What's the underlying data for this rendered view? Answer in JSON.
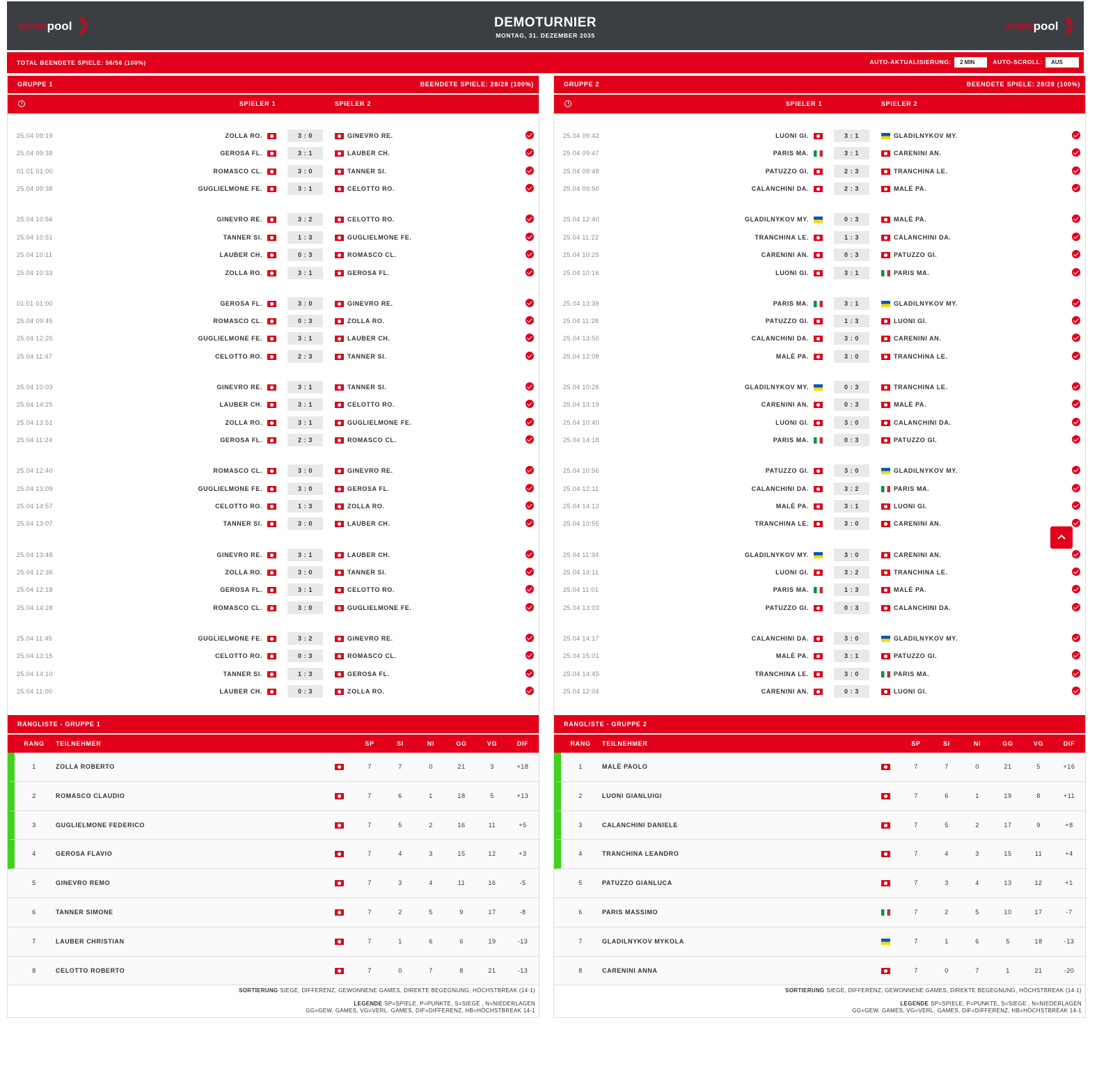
{
  "header": {
    "logo": {
      "part1": "swiss",
      "part2": "pool"
    },
    "title": "DEMOTURNIER",
    "subtitle": "MONTAG, 31. DEZEMBER 2035"
  },
  "status": {
    "total": "TOTAL BEENDETE SPIELE: 56/56 (100%)",
    "refresh_label": "AUTO-AKTUALISIERUNG:",
    "refresh_value": "2 MIN",
    "scroll_label": "AUTO-SCROLL:",
    "scroll_value": "AUS"
  },
  "groups": [
    {
      "name": "GRUPPE 1",
      "finished": "BEENDETE SPIELE: 28/28 (100%)",
      "col_p1": "SPIELER 1",
      "col_p2": "SPIELER 2",
      "rounds": [
        [
          [
            "25.04 09:19",
            "ZOLLA RO.",
            "ch",
            "3 : 0",
            "ch",
            "GINEVRO RE."
          ],
          [
            "25.04 09:38",
            "GEROSA FL.",
            "ch",
            "3 : 1",
            "ch",
            "LAUBER CH."
          ],
          [
            "01.01 01:00",
            "ROMASCO CL.",
            "ch",
            "3 : 0",
            "ch",
            "TANNER SI."
          ],
          [
            "25.04 09:38",
            "GUGLIELMONE FE.",
            "ch",
            "3 : 1",
            "ch",
            "CELOTTO RO."
          ]
        ],
        [
          [
            "25.04 10:56",
            "GINEVRO RE.",
            "ch",
            "3 : 2",
            "ch",
            "CELOTTO RO."
          ],
          [
            "25.04 10:51",
            "TANNER SI.",
            "ch",
            "1 : 3",
            "ch",
            "GUGLIELMONE FE."
          ],
          [
            "25.04 10:11",
            "LAUBER CH.",
            "ch",
            "0 : 3",
            "ch",
            "ROMASCO CL."
          ],
          [
            "25.04 10:33",
            "ZOLLA RO.",
            "ch",
            "3 : 1",
            "ch",
            "GEROSA FL."
          ]
        ],
        [
          [
            "01.01 01:00",
            "GEROSA FL.",
            "ch",
            "3 : 0",
            "ch",
            "GINEVRO RE."
          ],
          [
            "25.04 09:45",
            "ROMASCO CL.",
            "ch",
            "0 : 3",
            "ch",
            "ZOLLA RO."
          ],
          [
            "25.04 12:20",
            "GUGLIELMONE FE.",
            "ch",
            "3 : 1",
            "ch",
            "LAUBER CH."
          ],
          [
            "25.04 11:47",
            "CELOTTO RO.",
            "ch",
            "2 : 3",
            "ch",
            "TANNER SI."
          ]
        ],
        [
          [
            "25.04 10:03",
            "GINEVRO RE.",
            "ch",
            "3 : 1",
            "ch",
            "TANNER SI."
          ],
          [
            "25.04 14:25",
            "LAUBER CH.",
            "ch",
            "3 : 1",
            "ch",
            "CELOTTO RO."
          ],
          [
            "25.04 13:51",
            "ZOLLA RO.",
            "ch",
            "3 : 1",
            "ch",
            "GUGLIELMONE FE."
          ],
          [
            "25.04 11:24",
            "GEROSA FL.",
            "ch",
            "2 : 3",
            "ch",
            "ROMASCO CL."
          ]
        ],
        [
          [
            "25.04 12:40",
            "ROMASCO CL.",
            "ch",
            "3 : 0",
            "ch",
            "GINEVRO RE."
          ],
          [
            "25.04 13:09",
            "GUGLIELMONE FE.",
            "ch",
            "3 : 0",
            "ch",
            "GEROSA FL."
          ],
          [
            "25.04 14:57",
            "CELOTTO RO.",
            "ch",
            "1 : 3",
            "ch",
            "ZOLLA RO."
          ],
          [
            "25.04 13:07",
            "TANNER SI.",
            "ch",
            "3 : 0",
            "ch",
            "LAUBER CH."
          ]
        ],
        [
          [
            "25.04 13:48",
            "GINEVRO RE.",
            "ch",
            "3 : 1",
            "ch",
            "LAUBER CH."
          ],
          [
            "25.04 12:36",
            "ZOLLA RO.",
            "ch",
            "3 : 0",
            "ch",
            "TANNER SI."
          ],
          [
            "25.04 12:18",
            "GEROSA FL.",
            "ch",
            "3 : 1",
            "ch",
            "CELOTTO RO."
          ],
          [
            "25.04 14:28",
            "ROMASCO CL.",
            "ch",
            "3 : 0",
            "ch",
            "GUGLIELMONE FE."
          ]
        ],
        [
          [
            "25.04 11:45",
            "GUGLIELMONE FE.",
            "ch",
            "3 : 2",
            "ch",
            "GINEVRO RE."
          ],
          [
            "25.04 13:15",
            "CELOTTO RO.",
            "ch",
            "0 : 3",
            "ch",
            "ROMASCO CL."
          ],
          [
            "25.04 14:10",
            "TANNER SI.",
            "ch",
            "1 : 3",
            "ch",
            "GEROSA FL."
          ],
          [
            "25.04 11:00",
            "LAUBER CH.",
            "ch",
            "0 : 3",
            "ch",
            "ZOLLA RO."
          ]
        ]
      ],
      "standings": {
        "title": "RANGLISTE - GRUPPE 1",
        "columns": [
          "RANG",
          "TEILNEHMER",
          "SP",
          "SI",
          "NI",
          "GG",
          "VG",
          "DIF"
        ],
        "rows": [
          [
            1,
            "ZOLLA ROBERTO",
            "ch",
            7,
            7,
            0,
            21,
            3,
            "+18"
          ],
          [
            2,
            "ROMASCO CLAUDIO",
            "ch",
            7,
            6,
            1,
            18,
            5,
            "+13"
          ],
          [
            3,
            "GUGLIELMONE FEDERICO",
            "ch",
            7,
            5,
            2,
            16,
            11,
            "+5"
          ],
          [
            4,
            "GEROSA FLAVIO",
            "ch",
            7,
            4,
            3,
            15,
            12,
            "+3"
          ],
          [
            5,
            "GINEVRO REMO",
            "ch",
            7,
            3,
            4,
            11,
            16,
            "-5"
          ],
          [
            6,
            "TANNER SIMONE",
            "ch",
            7,
            2,
            5,
            9,
            17,
            "-8"
          ],
          [
            7,
            "LAUBER CHRISTIAN",
            "ch",
            7,
            1,
            6,
            6,
            19,
            "-13"
          ],
          [
            8,
            "CELOTTO ROBERTO",
            "ch",
            7,
            0,
            7,
            8,
            21,
            "-13"
          ]
        ]
      },
      "sort_label": "SORTIERUNG",
      "sort_text": "SIEGE, DIFFERENZ, GEWONNENE GAMES, DIREKTE BEGEGNUNG, HÖCHSTBREAK (14-1)",
      "legend_label": "LEGENDE",
      "legend_lines": [
        "SP=SPIELE, P=PUNKTE, S=SIEGE , N=NIEDERLAGEN",
        "GG=GEW. GAMES, VG=VERL. GAMES, DIF=DIFFERENZ, HB=HÖCHSTBREAK 14-1"
      ]
    },
    {
      "name": "GRUPPE 2",
      "finished": "BEENDETE SPIELE: 28/28 (100%)",
      "col_p1": "SPIELER 1",
      "col_p2": "SPIELER 2",
      "rounds": [
        [
          [
            "25.04 09:42",
            "LUONI GI.",
            "ch",
            "3 : 1",
            "ua",
            "GLADILNYKOV MY."
          ],
          [
            "25.04 09:47",
            "PARIS MA.",
            "it",
            "3 : 1",
            "ch",
            "CARENINI AN."
          ],
          [
            "25.04 09:48",
            "PATUZZO GI.",
            "ch",
            "2 : 3",
            "ch",
            "TRANCHINA LE."
          ],
          [
            "25.04 09:50",
            "CALANCHINI DA.",
            "ch",
            "2 : 3",
            "ch",
            "MALÈ PA."
          ]
        ],
        [
          [
            "25.04 12:40",
            "GLADILNYKOV MY.",
            "ua",
            "0 : 3",
            "ch",
            "MALÈ PA."
          ],
          [
            "25.04 11:22",
            "TRANCHINA LE.",
            "ch",
            "1 : 3",
            "ch",
            "CALANCHINI DA."
          ],
          [
            "25.04 10:25",
            "CARENINI AN.",
            "ch",
            "0 : 3",
            "ch",
            "PATUZZO GI."
          ],
          [
            "25.04 10:16",
            "LUONI GI.",
            "ch",
            "3 : 1",
            "it",
            "PARIS MA."
          ]
        ],
        [
          [
            "25.04 13:39",
            "PARIS MA.",
            "it",
            "3 : 1",
            "ua",
            "GLADILNYKOV MY."
          ],
          [
            "25.04 11:28",
            "PATUZZO GI.",
            "ch",
            "1 : 3",
            "ch",
            "LUONI GI."
          ],
          [
            "25.04 13:50",
            "CALANCHINI DA.",
            "ch",
            "3 : 0",
            "ch",
            "CARENINI AN."
          ],
          [
            "25.04 12:08",
            "MALÈ PA.",
            "ch",
            "3 : 0",
            "ch",
            "TRANCHINA LE."
          ]
        ],
        [
          [
            "25.04 10:26",
            "GLADILNYKOV MY.",
            "ua",
            "0 : 3",
            "ch",
            "TRANCHINA LE."
          ],
          [
            "25.04 13:19",
            "CARENINI AN.",
            "ch",
            "0 : 3",
            "ch",
            "MALÈ PA."
          ],
          [
            "25.04 10:40",
            "LUONI GI.",
            "ch",
            "3 : 0",
            "ch",
            "CALANCHINI DA."
          ],
          [
            "25.04 14:18",
            "PARIS MA.",
            "it",
            "0 : 3",
            "ch",
            "PATUZZO GI."
          ]
        ],
        [
          [
            "25.04 10:56",
            "PATUZZO GI.",
            "ch",
            "3 : 0",
            "ua",
            "GLADILNYKOV MY."
          ],
          [
            "25.04 12:11",
            "CALANCHINI DA.",
            "ch",
            "3 : 2",
            "it",
            "PARIS MA."
          ],
          [
            "25.04 14:12",
            "MALÈ PA.",
            "ch",
            "3 : 1",
            "ch",
            "LUONI GI."
          ],
          [
            "25.04 10:55",
            "TRANCHINA LE.",
            "ch",
            "3 : 0",
            "ch",
            "CARENINI AN."
          ]
        ],
        [
          [
            "25.04 11:34",
            "GLADILNYKOV MY.",
            "ua",
            "3 : 0",
            "ch",
            "CARENINI AN."
          ],
          [
            "25.04 13:11",
            "LUONI GI.",
            "ch",
            "3 : 2",
            "ch",
            "TRANCHINA LE."
          ],
          [
            "25.04 11:01",
            "PARIS MA.",
            "it",
            "1 : 3",
            "ch",
            "MALÈ PA."
          ],
          [
            "25.04 13:03",
            "PATUZZO GI.",
            "ch",
            "0 : 3",
            "ch",
            "CALANCHINI DA."
          ]
        ],
        [
          [
            "25.04 14:17",
            "CALANCHINI DA.",
            "ch",
            "3 : 0",
            "ua",
            "GLADILNYKOV MY."
          ],
          [
            "25.04 15:01",
            "MALÈ PA.",
            "ch",
            "3 : 1",
            "ch",
            "PATUZZO GI."
          ],
          [
            "25.04 14:45",
            "TRANCHINA LE.",
            "ch",
            "3 : 0",
            "it",
            "PARIS MA."
          ],
          [
            "25.04 12:04",
            "CARENINI AN.",
            "ch",
            "0 : 3",
            "ch",
            "LUONI GI."
          ]
        ]
      ],
      "standings": {
        "title": "RANGLISTE - GRUPPE 2",
        "columns": [
          "RANG",
          "TEILNEHMER",
          "SP",
          "SI",
          "NI",
          "GG",
          "VG",
          "DIF"
        ],
        "rows": [
          [
            1,
            "MALÈ PAOLO",
            "ch",
            7,
            7,
            0,
            21,
            5,
            "+16"
          ],
          [
            2,
            "LUONI GIANLUIGI",
            "ch",
            7,
            6,
            1,
            19,
            8,
            "+11"
          ],
          [
            3,
            "CALANCHINI DANIELE",
            "ch",
            7,
            5,
            2,
            17,
            9,
            "+8"
          ],
          [
            4,
            "TRANCHINA LEANDRO",
            "ch",
            7,
            4,
            3,
            15,
            11,
            "+4"
          ],
          [
            5,
            "PATUZZO GIANLUCA",
            "ch",
            7,
            3,
            4,
            13,
            12,
            "+1"
          ],
          [
            6,
            "PARIS MASSIMO",
            "it",
            7,
            2,
            5,
            10,
            17,
            "-7"
          ],
          [
            7,
            "GLADILNYKOV MYKOLA",
            "ua",
            7,
            1,
            6,
            5,
            18,
            "-13"
          ],
          [
            8,
            "CARENINI ANNA",
            "ch",
            7,
            0,
            7,
            1,
            21,
            "-20"
          ]
        ]
      },
      "sort_label": "SORTIERUNG",
      "sort_text": "SIEGE, DIFFERENZ, GEWONNENE GAMES, DIREKTE BEGEGNUNG, HÖCHSTBREAK (14-1)",
      "legend_label": "LEGENDE",
      "legend_lines": [
        "SP=SPIELE, P=PUNKTE, S=SIEGE , N=NIEDERLAGEN",
        "GG=GEW. GAMES, VG=VERL. GAMES, DIF=DIFFERENZ, HB=HÖCHSTBREAK 14-1"
      ]
    }
  ]
}
